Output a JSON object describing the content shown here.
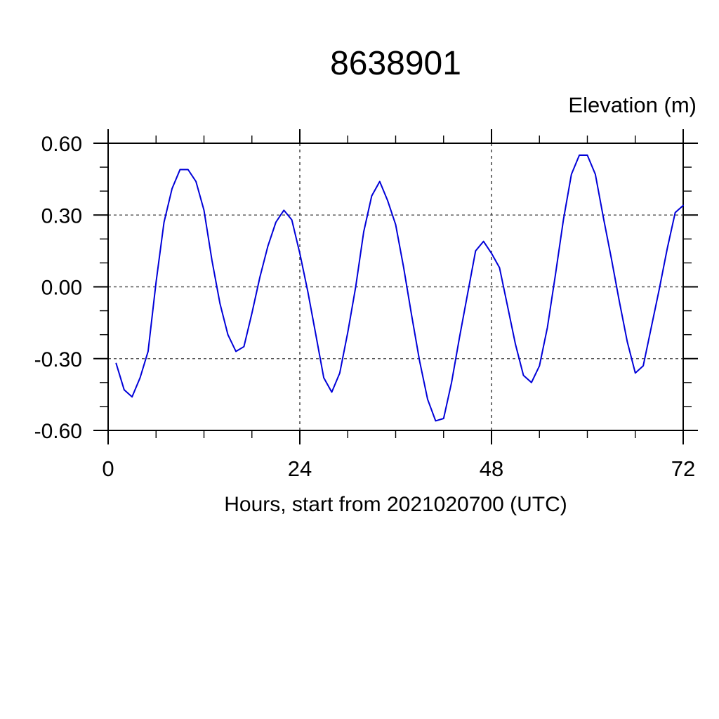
{
  "page": {
    "title": "8638901"
  },
  "chart_data": {
    "type": "line",
    "title": "8638901",
    "ylabel": "Elevation (m)",
    "xlabel": "Hours, start from 2021020700 (UTC)",
    "xlim": [
      0,
      72
    ],
    "ylim": [
      -0.6,
      0.6
    ],
    "xticks": [
      0,
      24,
      48,
      72
    ],
    "xtick_labels": [
      "0",
      "24",
      "48",
      "72"
    ],
    "xminor_interval": 6,
    "yticks": [
      0.6,
      0.3,
      0.0,
      -0.3,
      -0.6
    ],
    "ytick_labels": [
      "0.60",
      "0.30",
      "0.00",
      "-0.30",
      "-0.60"
    ],
    "yminor_interval": 0.1,
    "grid_x": [
      24,
      48
    ],
    "grid_y": [
      0.3,
      0.0,
      -0.3
    ],
    "grid_on": true,
    "legend": "none",
    "line_color": "#0000d8",
    "series": [
      {
        "name": "elevation",
        "x": [
          1,
          2,
          3,
          4,
          5,
          6,
          7,
          8,
          9,
          10,
          11,
          12,
          13,
          14,
          15,
          16,
          17,
          18,
          19,
          20,
          21,
          22,
          23,
          24,
          25,
          26,
          27,
          28,
          29,
          30,
          31,
          32,
          33,
          34,
          35,
          36,
          37,
          38,
          39,
          40,
          41,
          42,
          43,
          44,
          45,
          46,
          47,
          48,
          49,
          50,
          51,
          52,
          53,
          54,
          55,
          56,
          57,
          58,
          59,
          60,
          61,
          62,
          63,
          64,
          65,
          66,
          67,
          68,
          69,
          70,
          71,
          72
        ],
        "values": [
          -0.32,
          -0.43,
          -0.46,
          -0.38,
          -0.27,
          0.02,
          0.27,
          0.41,
          0.49,
          0.49,
          0.44,
          0.32,
          0.11,
          -0.07,
          -0.2,
          -0.27,
          -0.25,
          -0.11,
          0.04,
          0.17,
          0.27,
          0.32,
          0.28,
          0.14,
          -0.02,
          -0.2,
          -0.38,
          -0.44,
          -0.36,
          -0.19,
          0.0,
          0.23,
          0.38,
          0.44,
          0.36,
          0.26,
          0.08,
          -0.12,
          -0.31,
          -0.47,
          -0.56,
          -0.55,
          -0.4,
          -0.21,
          -0.03,
          0.15,
          0.19,
          0.14,
          0.08,
          -0.08,
          -0.24,
          -0.37,
          -0.4,
          -0.33,
          -0.17,
          0.05,
          0.28,
          0.47,
          0.55,
          0.55,
          0.47,
          0.29,
          0.12,
          -0.06,
          -0.23,
          -0.36,
          -0.33,
          -0.17,
          -0.01,
          0.16,
          0.31,
          0.34
        ]
      }
    ]
  }
}
